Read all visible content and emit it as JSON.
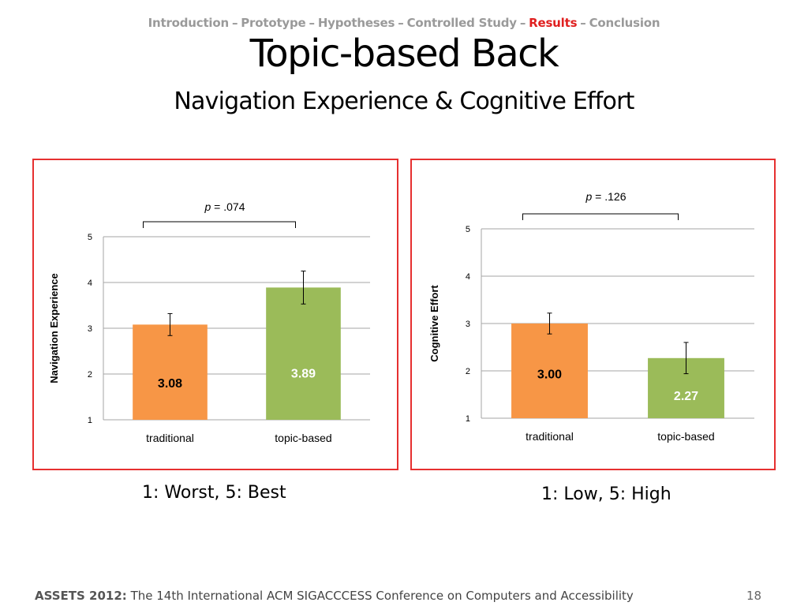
{
  "breadcrumb": {
    "items": [
      {
        "label": "Introduction",
        "active": false
      },
      {
        "label": "Prototype",
        "active": false
      },
      {
        "label": "Hypotheses",
        "active": false
      },
      {
        "label": "Controlled Study",
        "active": false
      },
      {
        "label": "Results",
        "active": true
      },
      {
        "label": "Conclusion",
        "active": false
      }
    ],
    "separator": "–",
    "active_color": "#e02020",
    "inactive_color": "#9a9a9a"
  },
  "slide": {
    "title": "Topic-based Back",
    "subtitle": "Navigation Experience & Cognitive Effort"
  },
  "chart_data": [
    {
      "type": "bar",
      "categories": [
        "traditional",
        "topic-based"
      ],
      "values": [
        3.08,
        3.89
      ],
      "value_labels": [
        "3.08",
        "3.89"
      ],
      "error": [
        0.24,
        0.36
      ],
      "colors": [
        "#f79646",
        "#9bbb59"
      ],
      "label_colors": [
        "#000000",
        "#ffffff"
      ],
      "ylabel": "Navigation Experience",
      "ylim": [
        1,
        5
      ],
      "yticks": [
        1,
        2,
        3,
        4,
        5
      ],
      "ytick_labels": [
        "1",
        "2",
        "3",
        "4",
        "5"
      ],
      "grid": true,
      "significance": {
        "p_symbol": "p",
        "p_rest": " = .074"
      },
      "border_color": "#e63030"
    },
    {
      "type": "bar",
      "categories": [
        "traditional",
        "topic-based"
      ],
      "values": [
        3.0,
        2.27
      ],
      "value_labels": [
        "3.00",
        "2.27"
      ],
      "error": [
        0.22,
        0.33
      ],
      "colors": [
        "#f79646",
        "#9bbb59"
      ],
      "label_colors": [
        "#000000",
        "#ffffff"
      ],
      "ylabel": "Cognitive Effort",
      "ylim": [
        1,
        5
      ],
      "yticks": [
        1,
        2,
        3,
        4,
        5
      ],
      "ytick_labels": [
        "1",
        "2",
        "3",
        "4",
        "5"
      ],
      "grid": true,
      "significance": {
        "p_symbol": "p",
        "p_rest": " = .126"
      },
      "border_color": "#e63030"
    }
  ],
  "captions": {
    "left": "1: Worst, 5: Best",
    "right": "1: Low, 5: High"
  },
  "footer": {
    "conference_bold": "ASSETS 2012:",
    "conference_text": " The 14th International ACM SIGACCCESS Conference on Computers and Accessibility",
    "page_number": "18"
  }
}
